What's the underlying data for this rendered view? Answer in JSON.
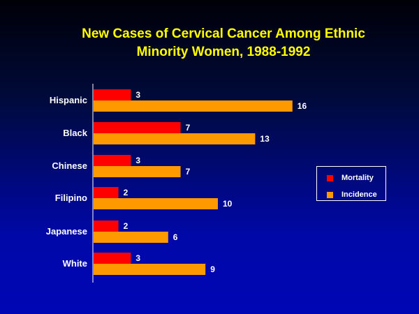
{
  "chart_data": {
    "type": "bar",
    "orientation": "horizontal",
    "title_lines": [
      "New Cases of Cervical Cancer Among Ethnic",
      "Minority Women, 1988-1992"
    ],
    "categories": [
      "Hispanic",
      "Black",
      "Chinese",
      "Filipino",
      "Japanese",
      "White"
    ],
    "series": [
      {
        "name": "Mortality",
        "color": "#ff0000",
        "values": [
          3,
          7,
          3,
          2,
          2,
          3
        ]
      },
      {
        "name": "Incidence",
        "color": "#ff9900",
        "values": [
          16,
          13,
          7,
          10,
          6,
          9
        ]
      }
    ],
    "xlim": [
      0,
      16
    ],
    "grid": false,
    "legend_position": "right"
  }
}
